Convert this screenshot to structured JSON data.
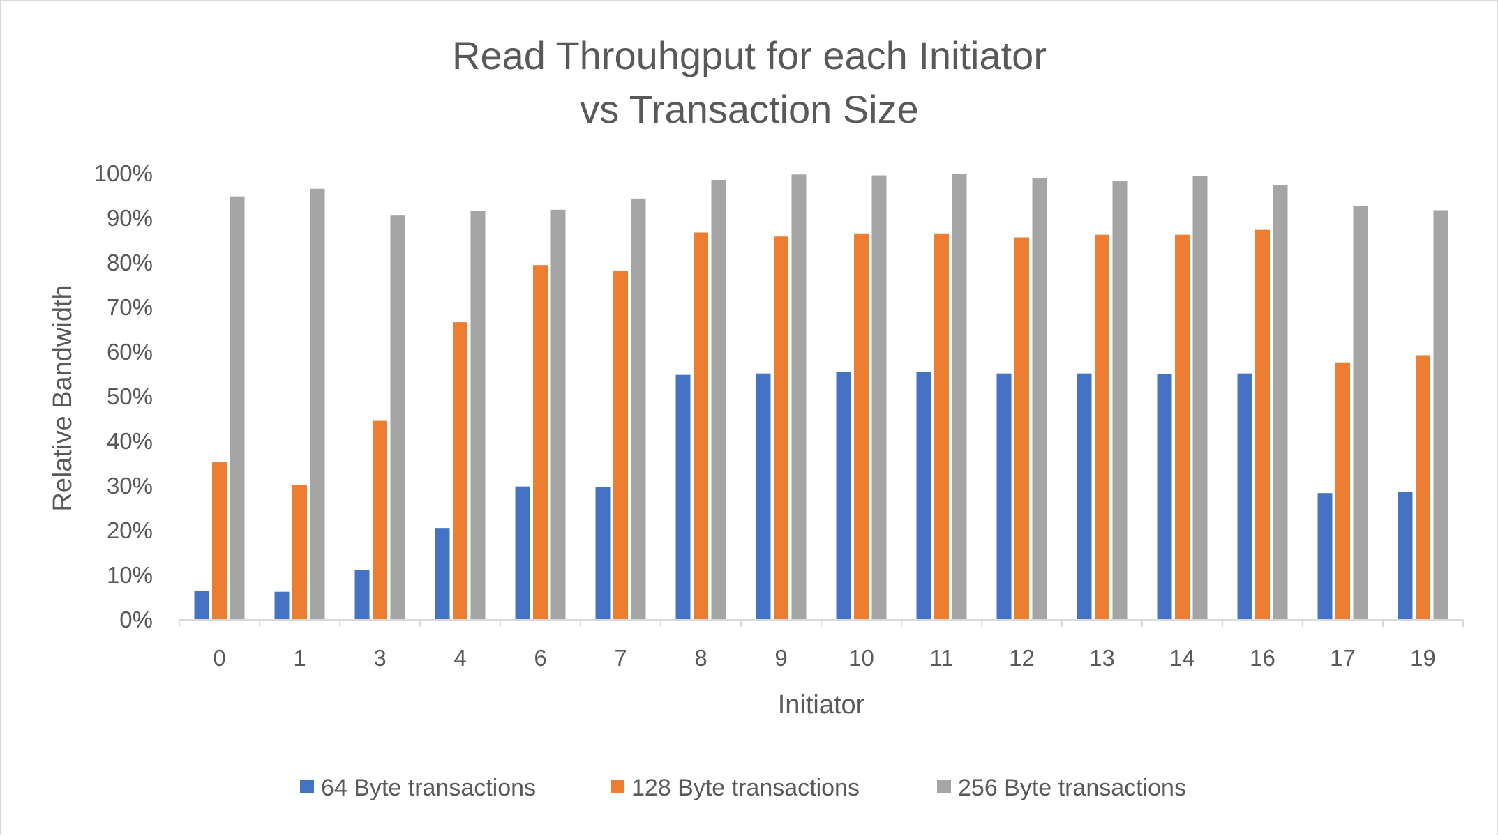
{
  "chart_data": {
    "type": "bar",
    "title_lines": [
      "Read Throuhgput for each Initiator",
      "vs Transaction Size"
    ],
    "xlabel": "Initiator",
    "ylabel": "Relative Bandwidth",
    "categories": [
      "0",
      "1",
      "3",
      "4",
      "6",
      "7",
      "8",
      "9",
      "10",
      "11",
      "12",
      "13",
      "14",
      "16",
      "17",
      "19"
    ],
    "ylim": [
      0,
      100
    ],
    "yticks": [
      0,
      10,
      20,
      30,
      40,
      50,
      60,
      70,
      80,
      90,
      100
    ],
    "ytick_labels": [
      "0%",
      "10%",
      "20%",
      "30%",
      "40%",
      "50%",
      "60%",
      "70%",
      "80%",
      "90%",
      "100%"
    ],
    "grid": false,
    "legend_position": "bottom",
    "series": [
      {
        "name": "64 Byte transactions",
        "color": "#4472c4",
        "values": [
          6.5,
          6.3,
          11.2,
          20.6,
          29.9,
          29.7,
          54.9,
          55.2,
          55.6,
          55.6,
          55.2,
          55.2,
          55.0,
          55.2,
          28.4,
          28.6
        ]
      },
      {
        "name": "128 Byte transactions",
        "color": "#ed7d31",
        "values": [
          35.3,
          30.3,
          44.6,
          66.7,
          79.5,
          78.2,
          86.8,
          85.9,
          86.6,
          86.6,
          85.7,
          86.3,
          86.3,
          87.4,
          57.7,
          59.3
        ]
      },
      {
        "name": "256 Byte transactions",
        "color": "#a5a5a5",
        "values": [
          94.9,
          96.6,
          90.6,
          91.6,
          91.9,
          94.4,
          98.6,
          99.8,
          99.6,
          100.0,
          98.9,
          98.4,
          99.4,
          97.4,
          92.8,
          91.8
        ]
      }
    ]
  }
}
